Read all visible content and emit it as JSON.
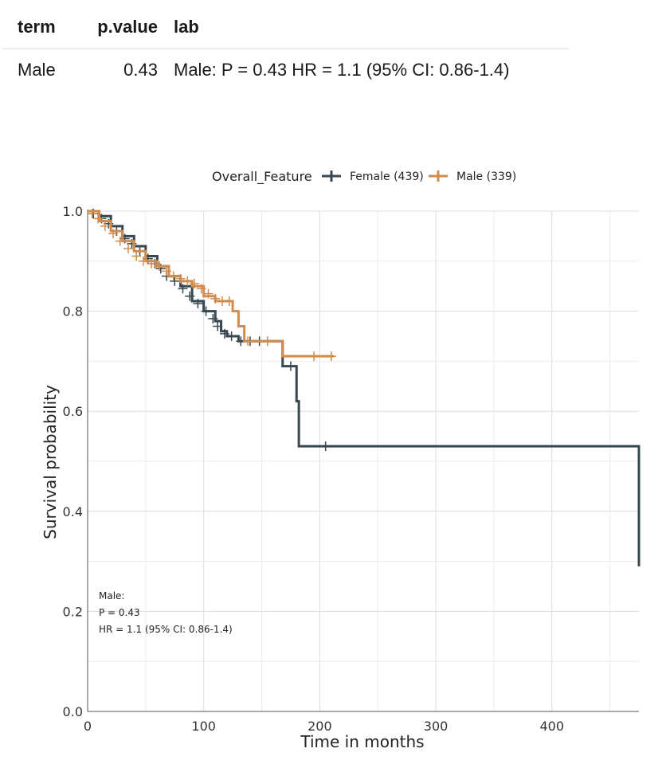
{
  "table": {
    "headers": [
      "term",
      "p.value",
      "lab"
    ],
    "rows": [
      {
        "term": "Male",
        "p_value": "0.43",
        "lab": "Male: P = 0.43 HR = 1.1 (95% CI: 0.86-1.4)"
      }
    ]
  },
  "chart_data": {
    "type": "line",
    "subtype": "kaplan-meier step",
    "title": "",
    "xlabel": "Time in months",
    "ylabel": "Survival probability",
    "xlim": [
      0,
      475
    ],
    "ylim": [
      0,
      1.0
    ],
    "x_ticks": [
      0,
      100,
      200,
      300,
      400
    ],
    "x_tick_labels": [
      "0",
      "100",
      "200",
      "300",
      "400"
    ],
    "y_ticks": [
      0.0,
      0.2,
      0.4,
      0.6,
      0.8,
      1.0
    ],
    "y_tick_labels": [
      "0.0",
      "0.2",
      "0.4",
      "0.6",
      "0.8",
      "1.0"
    ],
    "grid": true,
    "legend": {
      "title": "Overall_Feature",
      "position": "top"
    },
    "annotation": [
      "Male:",
      "P = 0.43",
      "HR = 1.1 (95% CI: 0.86-1.4)"
    ],
    "series": [
      {
        "name": "Female (439)",
        "color": "#37474f",
        "x": [
          0,
          10,
          20,
          30,
          40,
          50,
          60,
          70,
          80,
          90,
          100,
          110,
          115,
          120,
          130,
          140,
          150,
          160,
          168,
          175,
          180,
          182,
          200,
          474,
          475
        ],
        "y": [
          1.0,
          0.99,
          0.97,
          0.95,
          0.93,
          0.91,
          0.89,
          0.87,
          0.85,
          0.82,
          0.8,
          0.78,
          0.76,
          0.75,
          0.74,
          0.74,
          0.74,
          0.74,
          0.69,
          0.69,
          0.62,
          0.53,
          0.53,
          0.53,
          0.29
        ],
        "censor_x": [
          5,
          12,
          18,
          25,
          32,
          38,
          45,
          52,
          58,
          63,
          68,
          75,
          82,
          88,
          95,
          102,
          108,
          112,
          118,
          124,
          132,
          140,
          148,
          175,
          205
        ],
        "censor_y": [
          0.995,
          0.985,
          0.975,
          0.96,
          0.945,
          0.935,
          0.92,
          0.905,
          0.895,
          0.885,
          0.87,
          0.86,
          0.845,
          0.83,
          0.815,
          0.8,
          0.785,
          0.77,
          0.755,
          0.75,
          0.74,
          0.74,
          0.74,
          0.69,
          0.53
        ]
      },
      {
        "name": "Male (339)",
        "color": "#d08c4e",
        "x": [
          0,
          10,
          20,
          30,
          40,
          50,
          60,
          70,
          80,
          90,
          100,
          110,
          120,
          125,
          130,
          135,
          150,
          168,
          175,
          200,
          212
        ],
        "y": [
          1.0,
          0.98,
          0.96,
          0.94,
          0.92,
          0.9,
          0.89,
          0.87,
          0.86,
          0.85,
          0.83,
          0.82,
          0.82,
          0.8,
          0.77,
          0.74,
          0.74,
          0.71,
          0.71,
          0.71,
          0.71
        ],
        "censor_x": [
          4,
          9,
          15,
          22,
          28,
          35,
          42,
          48,
          55,
          62,
          68,
          74,
          80,
          86,
          92,
          98,
          104,
          110,
          116,
          122,
          138,
          155,
          195,
          210
        ],
        "censor_y": [
          0.995,
          0.985,
          0.97,
          0.955,
          0.94,
          0.925,
          0.91,
          0.9,
          0.895,
          0.89,
          0.88,
          0.87,
          0.865,
          0.86,
          0.855,
          0.845,
          0.835,
          0.825,
          0.82,
          0.82,
          0.74,
          0.74,
          0.71,
          0.71
        ]
      }
    ]
  }
}
